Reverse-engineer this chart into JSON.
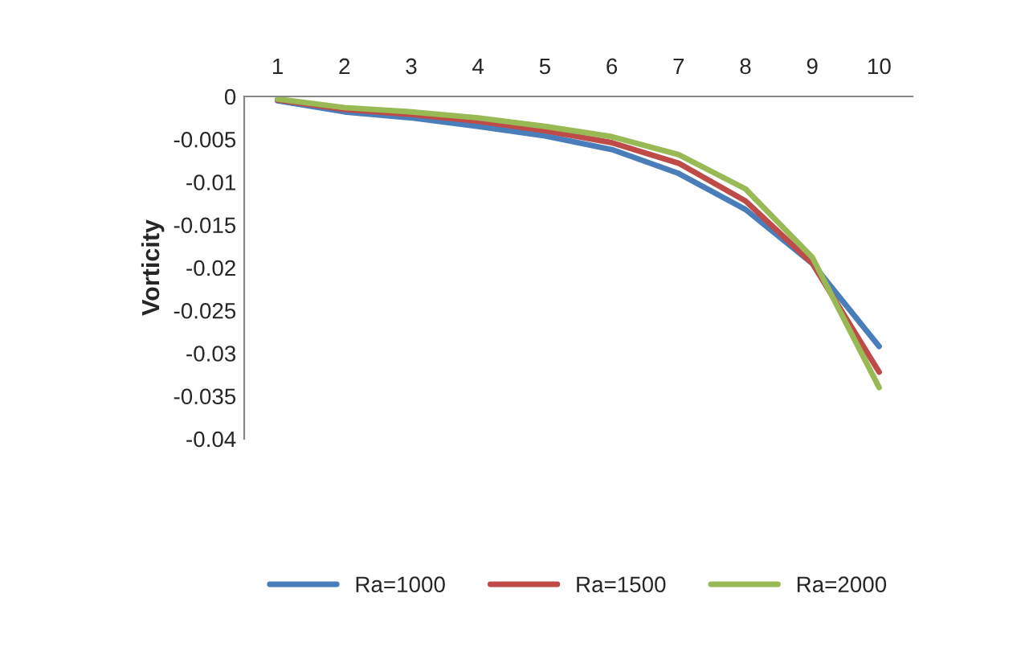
{
  "chart_data": {
    "type": "line",
    "ylabel": "Vorticity",
    "categories": [
      "1",
      "2",
      "3",
      "4",
      "5",
      "6",
      "7",
      "8",
      "9",
      "10"
    ],
    "series": [
      {
        "name": "Ra=1000",
        "color": "#4a7ebb",
        "values": [
          -0.0005,
          -0.0018,
          -0.0025,
          -0.0035,
          -0.0046,
          -0.0062,
          -0.009,
          -0.0132,
          -0.0195,
          -0.0292
        ]
      },
      {
        "name": "Ra=1500",
        "color": "#be4b48",
        "values": [
          -0.0004,
          -0.0015,
          -0.0021,
          -0.0029,
          -0.004,
          -0.0054,
          -0.0078,
          -0.0122,
          -0.0195,
          -0.0322
        ]
      },
      {
        "name": "Ra=2000",
        "color": "#98b954",
        "values": [
          -0.0003,
          -0.0013,
          -0.0018,
          -0.0025,
          -0.0035,
          -0.0047,
          -0.0068,
          -0.0108,
          -0.0188,
          -0.034
        ]
      }
    ],
    "ylim": [
      -0.04,
      0
    ],
    "yticks": [
      0,
      -0.005,
      -0.01,
      -0.015,
      -0.02,
      -0.025,
      -0.03,
      -0.035,
      -0.04
    ],
    "grid": false,
    "legend": "bottom",
    "marker": "none",
    "line_style": "solid"
  }
}
